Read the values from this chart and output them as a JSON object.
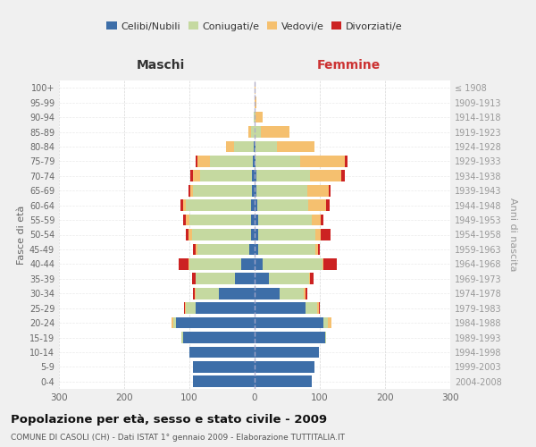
{
  "age_groups": [
    "0-4",
    "5-9",
    "10-14",
    "15-19",
    "20-24",
    "25-29",
    "30-34",
    "35-39",
    "40-44",
    "45-49",
    "50-54",
    "55-59",
    "60-64",
    "65-69",
    "70-74",
    "75-79",
    "80-84",
    "85-89",
    "90-94",
    "95-99",
    "100+"
  ],
  "birth_years": [
    "2004-2008",
    "1999-2003",
    "1994-1998",
    "1989-1993",
    "1984-1988",
    "1979-1983",
    "1974-1978",
    "1969-1973",
    "1964-1968",
    "1959-1963",
    "1954-1958",
    "1949-1953",
    "1944-1948",
    "1939-1943",
    "1934-1938",
    "1929-1933",
    "1924-1928",
    "1919-1923",
    "1914-1918",
    "1909-1913",
    "≤ 1908"
  ],
  "maschi": {
    "celibi": [
      95,
      95,
      100,
      110,
      120,
      90,
      55,
      30,
      20,
      8,
      6,
      5,
      5,
      4,
      4,
      3,
      2,
      0,
      0,
      0,
      0
    ],
    "coniugati": [
      0,
      0,
      0,
      2,
      5,
      15,
      35,
      60,
      80,
      80,
      90,
      95,
      100,
      90,
      80,
      65,
      30,
      5,
      2,
      0,
      0
    ],
    "vedovi": [
      0,
      0,
      0,
      0,
      2,
      2,
      2,
      1,
      1,
      2,
      5,
      5,
      5,
      5,
      10,
      20,
      12,
      5,
      0,
      0,
      0
    ],
    "divorziati": [
      0,
      0,
      0,
      0,
      0,
      1,
      2,
      5,
      15,
      5,
      5,
      5,
      4,
      3,
      5,
      2,
      0,
      0,
      0,
      0,
      0
    ]
  },
  "femmine": {
    "nubili": [
      88,
      92,
      98,
      108,
      105,
      78,
      38,
      22,
      12,
      5,
      5,
      5,
      4,
      3,
      3,
      2,
      2,
      0,
      0,
      0,
      0
    ],
    "coniugate": [
      0,
      0,
      0,
      2,
      8,
      18,
      38,
      62,
      92,
      88,
      88,
      83,
      78,
      78,
      82,
      68,
      32,
      10,
      2,
      0,
      0
    ],
    "vedove": [
      0,
      0,
      0,
      0,
      5,
      2,
      2,
      1,
      2,
      4,
      8,
      13,
      28,
      33,
      48,
      68,
      58,
      43,
      10,
      3,
      1
    ],
    "divorziate": [
      0,
      0,
      0,
      0,
      0,
      2,
      3,
      5,
      20,
      3,
      15,
      5,
      5,
      3,
      5,
      5,
      0,
      0,
      0,
      0,
      0
    ]
  },
  "colors": {
    "celibi": "#3d6ea8",
    "coniugati": "#c5d9a0",
    "vedovi": "#f5c06f",
    "divorziati": "#cc2222"
  },
  "title": "Popolazione per età, sesso e stato civile - 2009",
  "subtitle": "COMUNE DI CASOLI (CH) - Dati ISTAT 1° gennaio 2009 - Elaborazione TUTTITALIA.IT",
  "xlabel_left": "Maschi",
  "xlabel_right": "Femmine",
  "ylabel_left": "Fasce di età",
  "ylabel_right": "Anni di nascita",
  "xlim": 300,
  "bg_color": "#f0f0f0",
  "plot_bg": "#ffffff",
  "legend_labels": [
    "Celibi/Nubili",
    "Coniugati/e",
    "Vedovi/e",
    "Divorziati/e"
  ]
}
